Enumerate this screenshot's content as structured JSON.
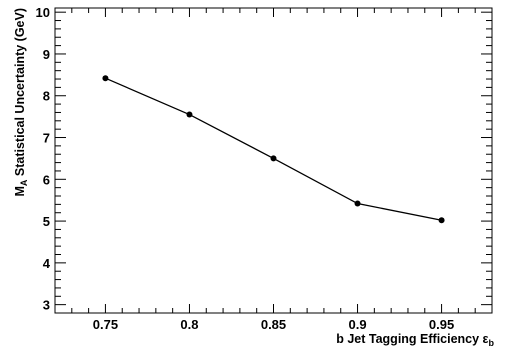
{
  "chart_data": {
    "type": "line",
    "title": "",
    "xlabel": "b Jet Tagging Efficiency ε",
    "xlabel_subscript": "b",
    "ylabel": "M",
    "ylabel_subscript": "A",
    "ylabel_rest": " Statistical Uncertainty (GeV)",
    "xlim": [
      0.72,
      0.98
    ],
    "ylim": [
      2.8,
      10.1
    ],
    "xticks": [
      0.75,
      0.8,
      0.85,
      0.9,
      0.95
    ],
    "xtick_labels": [
      "0.75",
      "0.8",
      "0.85",
      "0.9",
      "0.95"
    ],
    "yticks": [
      3,
      4,
      5,
      6,
      7,
      8,
      9,
      10
    ],
    "ytick_labels": [
      "3",
      "4",
      "5",
      "6",
      "7",
      "8",
      "9",
      "10"
    ],
    "grid": false,
    "series": [
      {
        "x": [
          0.75,
          0.8,
          0.85,
          0.9,
          0.95
        ],
        "y": [
          8.42,
          7.55,
          6.5,
          5.42,
          5.02
        ],
        "color": "#000000"
      }
    ]
  }
}
